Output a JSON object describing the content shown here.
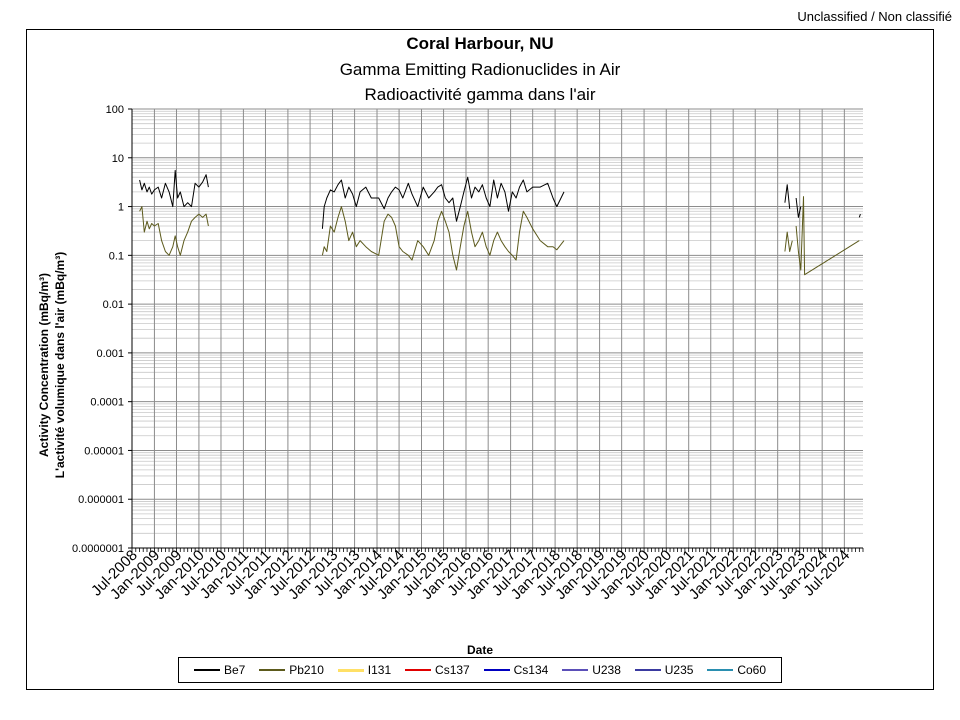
{
  "classification": "Unclassified / Non classifié",
  "chart_data": {
    "type": "line",
    "title": "Coral Harbour, NU",
    "subtitle_en": "Gamma Emitting Radionuclides in Air",
    "subtitle_fr": "Radioactivité gamma dans l'air",
    "ylabel_en": "Activity Concentration  (mBq/m³)",
    "ylabel_fr": "L'activité volumique dans l'air (mBq/m³)",
    "xlabel": "Date",
    "y_scale": "log",
    "ylim": [
      1e-07,
      100
    ],
    "y_ticks": [
      "100",
      "10",
      "1",
      "0.1",
      "0.01",
      "0.001",
      "0.0001",
      "0.00001",
      "0.000001",
      "0.0000001"
    ],
    "x_range": [
      "2008-07",
      "2024-12"
    ],
    "x_ticks": [
      "Jul-2008",
      "Jan-2009",
      "Jul-2009",
      "Jan-2010",
      "Jul-2010",
      "Jan-2011",
      "Jul-2011",
      "Jan-2012",
      "Jul-2012",
      "Jan-2013",
      "Jul-2013",
      "Jan-2014",
      "Jul-2014",
      "Jan-2015",
      "Jul-2015",
      "Jan-2016",
      "Jul-2016",
      "Jan-2017",
      "Jul-2017",
      "Jan-2018",
      "Jul-2018",
      "Jan-2019",
      "Jul-2019",
      "Jan-2020",
      "Jul-2020",
      "Jan-2021",
      "Jul-2021",
      "Jan-2022",
      "Jul-2022",
      "Jan-2023",
      "Jul-2023",
      "Jan-2024",
      "Jul-2024"
    ],
    "grid": true,
    "legend_position": "bottom",
    "series": [
      {
        "name": "Be7",
        "color": "#000000",
        "segments": [
          [
            [
              "2008-09-01",
              3.5
            ],
            [
              "2008-09-20",
              2.2
            ],
            [
              "2008-10-10",
              3.0
            ],
            [
              "2008-11-01",
              2.0
            ],
            [
              "2008-11-20",
              2.5
            ],
            [
              "2008-12-10",
              1.8
            ],
            [
              "2009-01-01",
              2.2
            ],
            [
              "2009-02-01",
              2.5
            ],
            [
              "2009-03-01",
              1.5
            ],
            [
              "2009-04-01",
              3.0
            ],
            [
              "2009-05-01",
              2.0
            ],
            [
              "2009-06-01",
              1.0
            ],
            [
              "2009-06-20",
              5.5
            ],
            [
              "2009-07-10",
              1.5
            ],
            [
              "2009-08-01",
              2.0
            ],
            [
              "2009-09-01",
              1.0
            ],
            [
              "2009-10-01",
              1.2
            ],
            [
              "2009-11-01",
              1.0
            ],
            [
              "2009-12-01",
              3.0
            ],
            [
              "2010-01-01",
              2.5
            ],
            [
              "2010-02-01",
              3.2
            ],
            [
              "2010-03-01",
              4.5
            ],
            [
              "2010-03-20",
              2.5
            ]
          ],
          [
            [
              "2012-10-10",
              0.35
            ],
            [
              "2012-10-25",
              1.0
            ],
            [
              "2012-11-15",
              1.5
            ],
            [
              "2012-12-15",
              2.2
            ],
            [
              "2013-01-15",
              2.0
            ],
            [
              "2013-02-15",
              2.8
            ],
            [
              "2013-03-15",
              3.5
            ],
            [
              "2013-04-15",
              1.5
            ],
            [
              "2013-05-15",
              2.5
            ],
            [
              "2013-06-15",
              1.8
            ],
            [
              "2013-07-15",
              1.0
            ],
            [
              "2013-08-15",
              2.0
            ],
            [
              "2013-10-01",
              2.5
            ],
            [
              "2013-11-15",
              1.5
            ],
            [
              "2014-01-15",
              1.5
            ],
            [
              "2014-03-01",
              0.9
            ],
            [
              "2014-04-01",
              1.5
            ],
            [
              "2014-05-01",
              2.0
            ],
            [
              "2014-06-01",
              2.5
            ],
            [
              "2014-07-01",
              2.2
            ],
            [
              "2014-08-01",
              1.5
            ],
            [
              "2014-09-15",
              3.0
            ],
            [
              "2014-10-15",
              1.8
            ],
            [
              "2014-12-01",
              1.0
            ],
            [
              "2015-01-15",
              2.5
            ],
            [
              "2015-03-01",
              1.5
            ],
            [
              "2015-04-15",
              2.0
            ],
            [
              "2015-05-15",
              2.5
            ],
            [
              "2015-06-15",
              2.8
            ],
            [
              "2015-07-15",
              1.5
            ],
            [
              "2015-08-15",
              1.2
            ],
            [
              "2015-09-15",
              1.5
            ],
            [
              "2015-10-15",
              0.5
            ],
            [
              "2015-11-15",
              1.0
            ],
            [
              "2015-12-15",
              2.0
            ],
            [
              "2016-01-15",
              4.0
            ],
            [
              "2016-02-15",
              1.5
            ],
            [
              "2016-03-15",
              2.5
            ],
            [
              "2016-04-15",
              2.0
            ],
            [
              "2016-05-15",
              2.8
            ],
            [
              "2016-06-15",
              1.5
            ],
            [
              "2016-07-15",
              1.0
            ],
            [
              "2016-08-15",
              3.5
            ],
            [
              "2016-09-15",
              1.5
            ],
            [
              "2016-10-15",
              3.0
            ],
            [
              "2016-11-15",
              2.0
            ],
            [
              "2016-12-15",
              0.8
            ],
            [
              "2017-01-15",
              2.0
            ],
            [
              "2017-02-15",
              1.5
            ],
            [
              "2017-03-15",
              2.5
            ],
            [
              "2017-04-15",
              3.5
            ],
            [
              "2017-05-15",
              2.0
            ],
            [
              "2017-07-01",
              2.5
            ],
            [
              "2017-09-01",
              2.5
            ],
            [
              "2017-11-01",
              3.0
            ],
            [
              "2017-12-15",
              1.5
            ],
            [
              "2018-01-15",
              1.0
            ],
            [
              "2018-03-15",
              2.0
            ]
          ],
          [
            [
              "2023-03-01",
              1.2
            ],
            [
              "2023-03-20",
              2.8
            ],
            [
              "2023-04-10",
              0.9
            ]
          ],
          [
            [
              "2023-06-01",
              1.5
            ],
            [
              "2023-06-20",
              0.6
            ],
            [
              "2023-07-10",
              1.0
            ]
          ],
          [
            [
              "2024-11-01",
              0.6
            ],
            [
              "2024-11-10",
              0.7
            ]
          ]
        ]
      },
      {
        "name": "Pb210",
        "color": "#5c5a1c",
        "segments": [
          [
            [
              "2008-09-01",
              0.8
            ],
            [
              "2008-09-20",
              1.0
            ],
            [
              "2008-10-10",
              0.3
            ],
            [
              "2008-11-01",
              0.5
            ],
            [
              "2008-11-20",
              0.35
            ],
            [
              "2008-12-10",
              0.45
            ],
            [
              "2009-01-01",
              0.4
            ],
            [
              "2009-02-01",
              0.45
            ],
            [
              "2009-03-01",
              0.2
            ],
            [
              "2009-04-01",
              0.12
            ],
            [
              "2009-05-01",
              0.1
            ],
            [
              "2009-06-01",
              0.15
            ],
            [
              "2009-06-20",
              0.25
            ],
            [
              "2009-07-10",
              0.15
            ],
            [
              "2009-08-01",
              0.1
            ],
            [
              "2009-09-01",
              0.2
            ],
            [
              "2009-10-01",
              0.3
            ],
            [
              "2009-11-01",
              0.5
            ],
            [
              "2009-12-01",
              0.6
            ],
            [
              "2010-01-01",
              0.7
            ],
            [
              "2010-02-01",
              0.6
            ],
            [
              "2010-03-01",
              0.7
            ],
            [
              "2010-03-20",
              0.4
            ]
          ],
          [
            [
              "2012-10-10",
              0.1
            ],
            [
              "2012-10-25",
              0.15
            ],
            [
              "2012-11-15",
              0.12
            ],
            [
              "2012-12-15",
              0.4
            ],
            [
              "2013-01-15",
              0.3
            ],
            [
              "2013-02-15",
              0.6
            ],
            [
              "2013-03-15",
              1.0
            ],
            [
              "2013-04-15",
              0.5
            ],
            [
              "2013-05-15",
              0.2
            ],
            [
              "2013-06-15",
              0.3
            ],
            [
              "2013-07-15",
              0.15
            ],
            [
              "2013-08-15",
              0.2
            ],
            [
              "2013-10-01",
              0.15
            ],
            [
              "2013-11-15",
              0.12
            ],
            [
              "2014-01-15",
              0.1
            ],
            [
              "2014-03-01",
              0.5
            ],
            [
              "2014-04-01",
              0.7
            ],
            [
              "2014-05-01",
              0.6
            ],
            [
              "2014-06-01",
              0.4
            ],
            [
              "2014-07-01",
              0.15
            ],
            [
              "2014-08-01",
              0.12
            ],
            [
              "2014-09-15",
              0.1
            ],
            [
              "2014-10-15",
              0.08
            ],
            [
              "2014-12-01",
              0.2
            ],
            [
              "2015-01-15",
              0.15
            ],
            [
              "2015-03-01",
              0.1
            ],
            [
              "2015-04-15",
              0.2
            ],
            [
              "2015-05-15",
              0.5
            ],
            [
              "2015-06-15",
              0.8
            ],
            [
              "2015-07-15",
              0.5
            ],
            [
              "2015-08-15",
              0.3
            ],
            [
              "2015-09-15",
              0.1
            ],
            [
              "2015-10-15",
              0.05
            ],
            [
              "2015-11-15",
              0.15
            ],
            [
              "2015-12-15",
              0.4
            ],
            [
              "2016-01-15",
              0.8
            ],
            [
              "2016-02-15",
              0.3
            ],
            [
              "2016-03-15",
              0.15
            ],
            [
              "2016-04-15",
              0.2
            ],
            [
              "2016-05-15",
              0.3
            ],
            [
              "2016-06-15",
              0.15
            ],
            [
              "2016-07-15",
              0.1
            ],
            [
              "2016-08-15",
              0.2
            ],
            [
              "2016-09-15",
              0.3
            ],
            [
              "2016-10-15",
              0.2
            ],
            [
              "2016-11-15",
              0.15
            ],
            [
              "2016-12-15",
              0.12
            ],
            [
              "2017-01-15",
              0.1
            ],
            [
              "2017-02-15",
              0.08
            ],
            [
              "2017-03-15",
              0.3
            ],
            [
              "2017-04-15",
              0.8
            ],
            [
              "2017-05-15",
              0.6
            ],
            [
              "2017-07-01",
              0.35
            ],
            [
              "2017-09-01",
              0.2
            ],
            [
              "2017-11-01",
              0.15
            ],
            [
              "2017-12-15",
              0.15
            ],
            [
              "2018-01-15",
              0.13
            ],
            [
              "2018-03-15",
              0.2
            ]
          ],
          [
            [
              "2023-03-01",
              0.12
            ],
            [
              "2023-03-20",
              0.3
            ],
            [
              "2023-04-10",
              0.12
            ],
            [
              "2023-05-01",
              0.2
            ]
          ],
          [
            [
              "2023-06-01",
              0.4
            ],
            [
              "2023-06-20",
              0.12
            ],
            [
              "2023-07-10",
              0.05
            ],
            [
              "2023-08-01",
              1.6
            ],
            [
              "2023-08-10",
              0.04
            ],
            [
              "2024-11-01",
              0.2
            ]
          ]
        ]
      },
      {
        "name": "I131",
        "color": "#ffe066",
        "segments": []
      },
      {
        "name": "Cs137",
        "color": "#e00000",
        "segments": []
      },
      {
        "name": "Cs134",
        "color": "#0000c0",
        "segments": []
      },
      {
        "name": "U238",
        "color": "#5b4fb8",
        "segments": []
      },
      {
        "name": "U235",
        "color": "#3a3aa0",
        "segments": []
      },
      {
        "name": "Co60",
        "color": "#2a8fb0",
        "segments": []
      }
    ]
  }
}
